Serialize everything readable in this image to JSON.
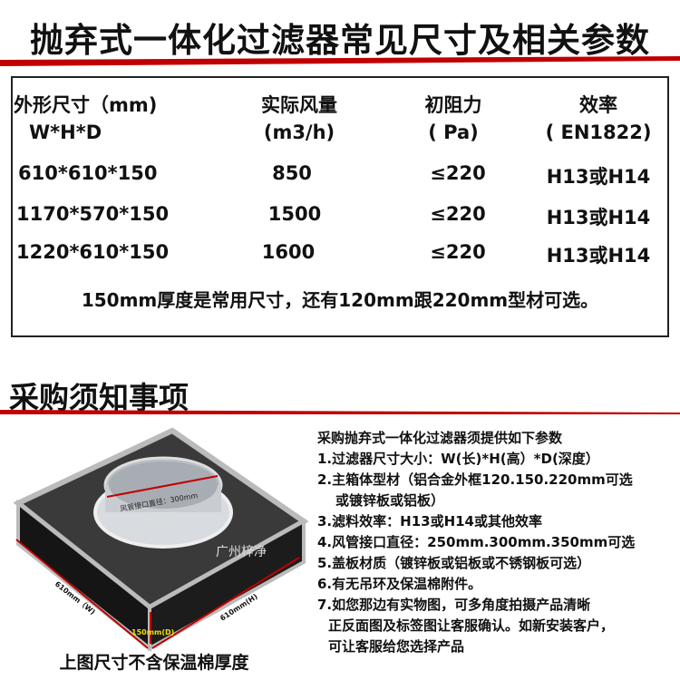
{
  "title": "抛弃式一体化过滤器常见尺寸及相关参数",
  "table": {
    "headers": [
      {
        "line1": "外形尺寸（mm)",
        "line2": "W*H*D"
      },
      {
        "line1": "实际风量",
        "line2": "(m3/h)"
      },
      {
        "line1": "初阻力",
        "line2": "( Pa)"
      },
      {
        "line1": "效率",
        "line2": "( EN1822)"
      }
    ],
    "rows": [
      [
        "610*610*150",
        "850",
        "≤220",
        "H13或H14"
      ],
      [
        "1170*570*150",
        "1500",
        "≤220",
        "H13或H14"
      ],
      [
        "1220*610*150",
        "1600",
        "≤220",
        "H13或H14"
      ]
    ],
    "note": "150mm厚度是常用尺寸，还有120mm跟220mm型材可选。"
  },
  "section2": {
    "title": "采购须知事项",
    "requirements": [
      "采购抛弃式一体化过滤器须提供如下参数",
      "1.过滤器尺寸大小：W(长)*H(高）*D(深度）",
      "2.主箱体型材（铝合金外框120.150.220mm可选",
      "   或镀锌板或铝板）",
      "3.滤料效率：H13或H14或其他效率",
      "4.风管接口直径：250mm.300mm.350mm可选",
      "5.盖板材质（镀锌板或铝板或不锈钢板可选）",
      "6.有无吊环及保温棉附件。",
      "7.如您那边有实物图，可多角度拍摄产品清晰",
      "   正反面图及标签图让客服确认。如新安装客户，",
      "   可让客服给您选择产品"
    ],
    "image_labels": {
      "duct_diameter": "风管接口直径：300mm",
      "width": "610mm（W)",
      "height": "610mm(H)",
      "depth": "150mm(D)",
      "watermark": "广州梓净"
    },
    "caption": "上图尺寸不含保温棉厚度"
  },
  "colors": {
    "accent_red": "#c00000",
    "depth_label": "#f0e000"
  }
}
